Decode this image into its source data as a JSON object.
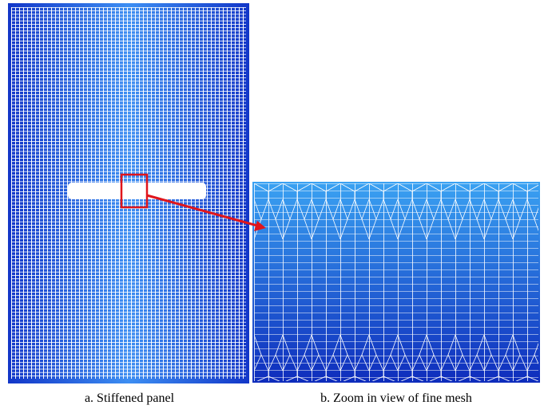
{
  "captions": {
    "a": "a. Stiffened panel",
    "b": "b. Zoom in view of fine mesh"
  }
}
